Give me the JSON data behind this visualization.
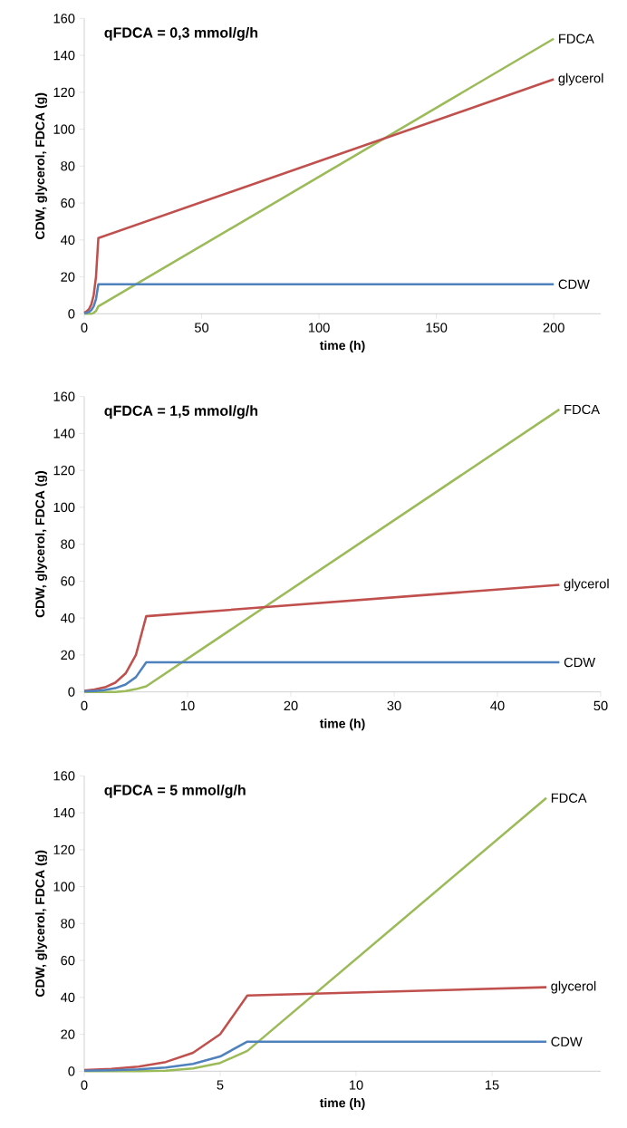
{
  "chart_data": [
    {
      "type": "line",
      "title": "qFDCA = 0,3 mmol/g/h",
      "xlabel": "time (h)",
      "ylabel": "CDW, glycerol, FDCA (g)",
      "x": [
        0,
        1,
        2,
        3,
        4,
        5,
        6,
        200
      ],
      "series": [
        {
          "name": "FDCA",
          "color": "#9bbb59",
          "values": [
            0,
            0,
            0,
            0,
            0.5,
            1.5,
            4,
            149
          ]
        },
        {
          "name": "glycerol",
          "color": "#c0504d",
          "values": [
            0.6,
            1.3,
            2.5,
            5,
            10,
            20,
            41,
            127
          ]
        },
        {
          "name": "CDW",
          "color": "#4f81bd",
          "values": [
            0.3,
            0.5,
            1,
            2,
            4,
            8,
            16,
            16
          ]
        }
      ],
      "xlim": [
        0,
        220
      ],
      "xticks": [
        0,
        50,
        100,
        150,
        200
      ],
      "ylim": [
        0,
        160
      ],
      "yticks": [
        0,
        20,
        40,
        60,
        80,
        100,
        120,
        140,
        160
      ]
    },
    {
      "type": "line",
      "title": "qFDCA = 1,5 mmol/g/h",
      "xlabel": "time (h)",
      "ylabel": "CDW, glycerol, FDCA (g)",
      "x": [
        0,
        1,
        2,
        3,
        4,
        5,
        6,
        46
      ],
      "series": [
        {
          "name": "FDCA",
          "color": "#9bbb59",
          "values": [
            0,
            0,
            0,
            0,
            0.5,
            1.5,
            3,
            153
          ]
        },
        {
          "name": "glycerol",
          "color": "#c0504d",
          "values": [
            0.6,
            1.3,
            2.5,
            5,
            10,
            20,
            41,
            58
          ]
        },
        {
          "name": "CDW",
          "color": "#4f81bd",
          "values": [
            0.3,
            0.5,
            1,
            2,
            4,
            8,
            16,
            16
          ]
        }
      ],
      "xlim": [
        0,
        50
      ],
      "xticks": [
        0,
        10,
        20,
        30,
        40,
        50
      ],
      "ylim": [
        0,
        160
      ],
      "yticks": [
        0,
        20,
        40,
        60,
        80,
        100,
        120,
        140,
        160
      ]
    },
    {
      "type": "line",
      "title": "qFDCA = 5 mmol/g/h",
      "xlabel": "time (h)",
      "ylabel": "CDW, glycerol, FDCA (g)",
      "x": [
        0,
        1,
        2,
        3,
        4,
        5,
        6,
        17
      ],
      "series": [
        {
          "name": "FDCA",
          "color": "#9bbb59",
          "values": [
            0,
            0,
            0,
            0.3,
            1.5,
            4.5,
            11,
            148
          ]
        },
        {
          "name": "glycerol",
          "color": "#c0504d",
          "values": [
            0.6,
            1.3,
            2.5,
            5,
            10,
            20,
            41,
            45.5
          ]
        },
        {
          "name": "CDW",
          "color": "#4f81bd",
          "values": [
            0.3,
            0.5,
            1,
            2,
            4,
            8,
            16,
            16
          ]
        }
      ],
      "xlim": [
        0,
        19
      ],
      "xticks": [
        0,
        5,
        10,
        15
      ],
      "ylim": [
        0,
        160
      ],
      "yticks": [
        0,
        20,
        40,
        60,
        80,
        100,
        120,
        140,
        160
      ]
    }
  ]
}
